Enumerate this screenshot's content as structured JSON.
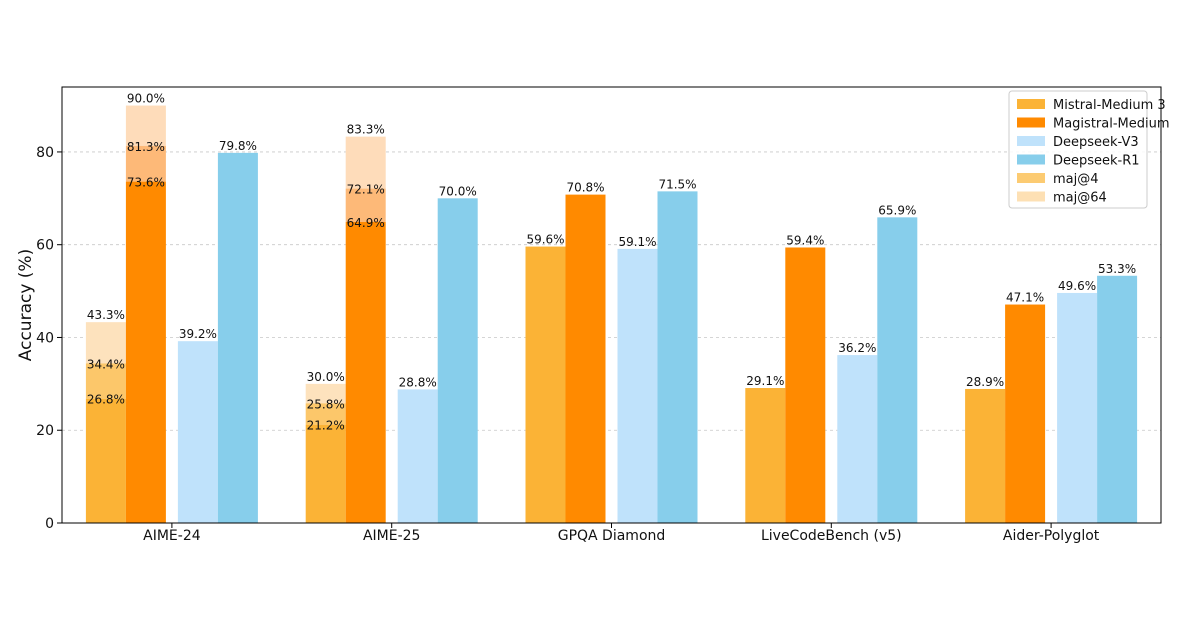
{
  "chart_data": {
    "type": "bar",
    "ylabel": "Accuracy (%)",
    "ylim": [
      0,
      94
    ],
    "yticks": [
      0,
      20,
      40,
      60,
      80
    ],
    "grid": true,
    "legend_position": "top-right",
    "categories": [
      "AIME-24",
      "AIME-25",
      "GPQA Diamond",
      "LiveCodeBench (v5)",
      "Aider-Polyglot"
    ],
    "series": [
      {
        "name": "Mistral-Medium 3",
        "color": "#FBB336",
        "values": [
          26.8,
          21.2,
          59.6,
          29.1,
          28.9
        ],
        "labels": [
          "26.8%",
          "21.2%",
          "59.6%",
          "29.1%",
          "28.9%"
        ]
      },
      {
        "name": "Magistral-Medium",
        "color": "#FF8A00",
        "values": [
          73.6,
          64.9,
          70.8,
          59.4,
          47.1
        ],
        "labels": [
          "73.6%",
          "64.9%",
          "70.8%",
          "59.4%",
          "47.1%"
        ]
      },
      {
        "name": "Deepseek-V3",
        "color": "#BFE2FB",
        "values": [
          39.2,
          28.8,
          59.1,
          36.2,
          49.6
        ],
        "labels": [
          "39.2%",
          "28.8%",
          "59.1%",
          "36.2%",
          "49.6%"
        ]
      },
      {
        "name": "Deepseek-R1",
        "color": "#87CEEB",
        "values": [
          79.8,
          70.0,
          71.5,
          65.9,
          53.3
        ],
        "labels": [
          "79.8%",
          "70.0%",
          "71.5%",
          "65.9%",
          "53.3%"
        ]
      }
    ],
    "stacked_extensions": [
      {
        "series": "Mistral-Medium 3",
        "category": "AIME-24",
        "maj4": 34.4,
        "maj4_label": "34.4%",
        "maj64": 43.3,
        "maj64_label": "43.3%"
      },
      {
        "series": "Magistral-Medium",
        "category": "AIME-24",
        "maj4": 81.3,
        "maj4_label": "81.3%",
        "maj64": 90.0,
        "maj64_label": "90.0%"
      },
      {
        "series": "Mistral-Medium 3",
        "category": "AIME-25",
        "maj4": 25.8,
        "maj4_label": "25.8%",
        "maj64": 30.0,
        "maj64_label": "30.0%"
      },
      {
        "series": "Magistral-Medium",
        "category": "AIME-25",
        "maj4": 72.1,
        "maj4_label": "72.1%",
        "maj64": 83.3,
        "maj64_label": "83.3%"
      }
    ],
    "extension_legend": [
      {
        "name": "maj@4",
        "color": "#FCCB72"
      },
      {
        "name": "maj@64",
        "color": "#FDE0B4"
      }
    ],
    "extension_colors": {
      "Mistral-Medium 3": {
        "maj4": "#FCC76A",
        "maj64": "#FDE2BD"
      },
      "Magistral-Medium": {
        "maj4": "#FDB978",
        "maj64": "#FEDCBA"
      }
    }
  }
}
